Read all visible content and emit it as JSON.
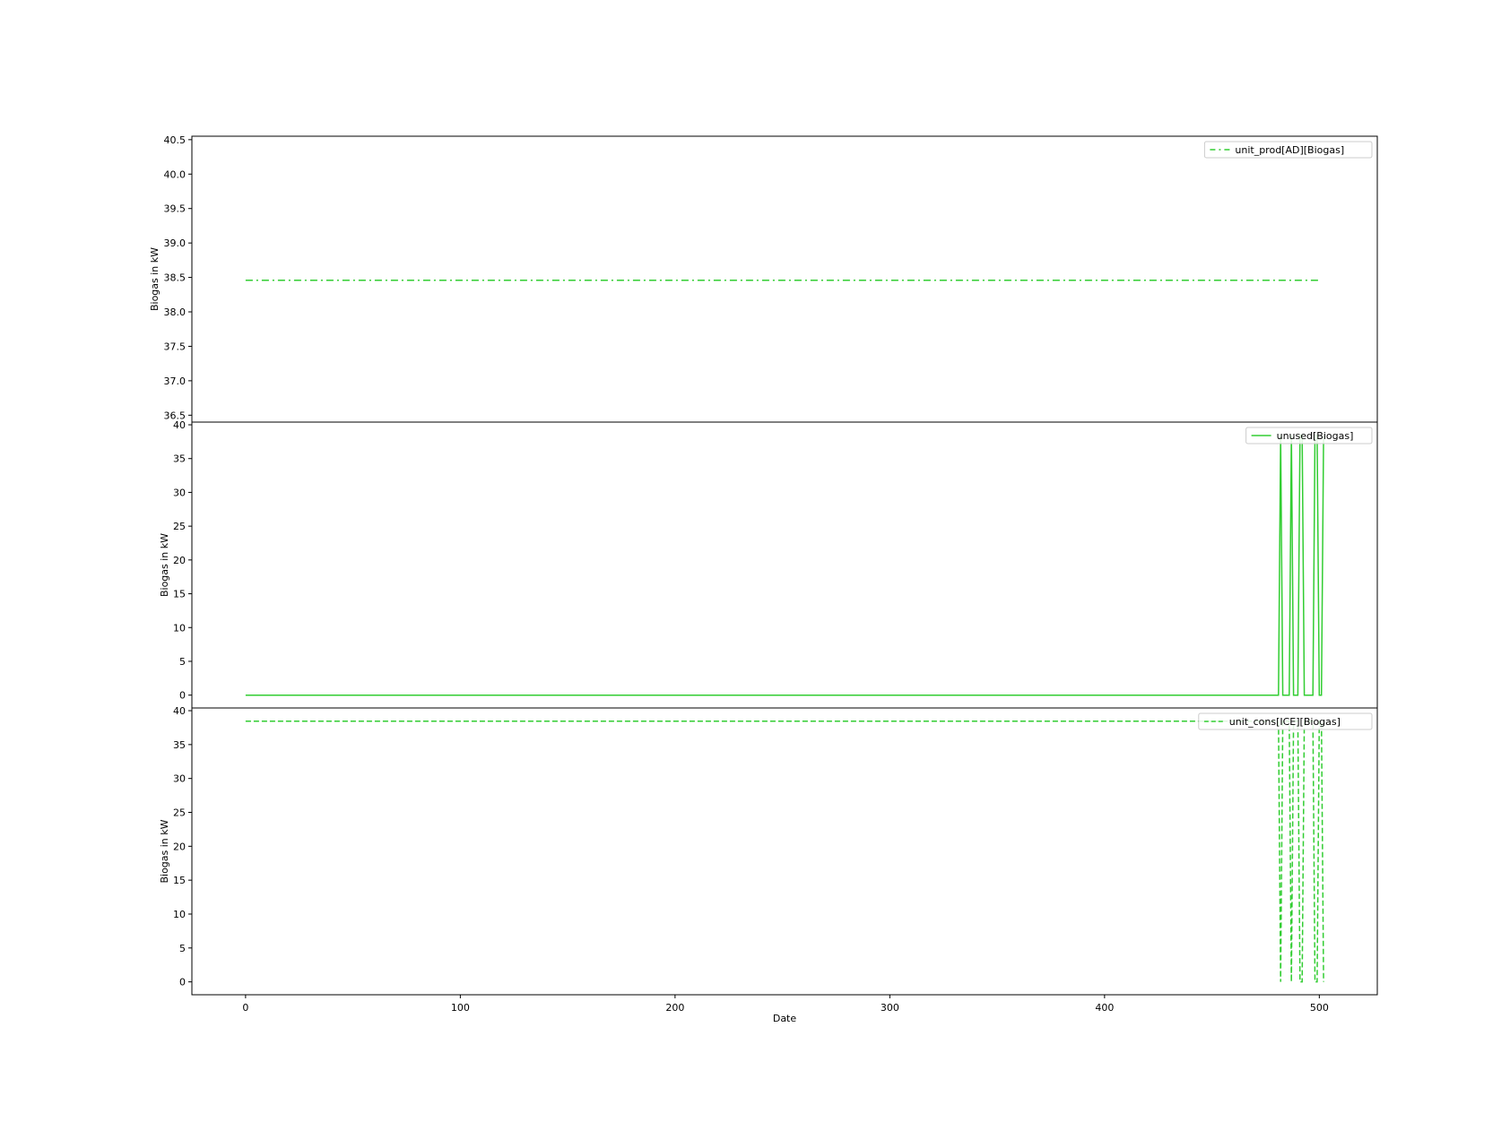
{
  "chart_data": {
    "type": "line",
    "xlabel": "Date",
    "x_ticks": [
      0,
      100,
      200,
      300,
      400,
      500
    ],
    "xlim": [
      -25,
      527
    ],
    "line_color": "#32cd32",
    "subplots": [
      {
        "ylabel": "Biogas in kW",
        "ylim": [
          36.4,
          40.55
        ],
        "y_ticks": [
          36.5,
          37.0,
          37.5,
          38.0,
          38.5,
          39.0,
          39.5,
          40.0,
          40.5
        ],
        "y_tick_labels": [
          "36.5",
          "37.0",
          "37.5",
          "38.0",
          "38.5",
          "39.0",
          "39.5",
          "40.0",
          "40.5"
        ],
        "legend_position": "top-right",
        "series": [
          {
            "name": "unit_prod[AD][Biogas]",
            "line_style": "dashdot",
            "points": [
              [
                0,
                38.46
              ],
              [
                500,
                38.46
              ]
            ]
          }
        ]
      },
      {
        "ylabel": "Biogas in kW",
        "ylim": [
          -1.9,
          40.4
        ],
        "y_ticks": [
          0,
          5,
          10,
          15,
          20,
          25,
          30,
          35,
          40
        ],
        "y_tick_labels": [
          "0",
          "5",
          "10",
          "15",
          "20",
          "25",
          "30",
          "35",
          "40"
        ],
        "legend_position": "top-right",
        "series": [
          {
            "name": "unused[Biogas]",
            "line_style": "solid",
            "points": [
              [
                0,
                0
              ],
              [
                481,
                0
              ],
              [
                482,
                38.46
              ],
              [
                483,
                0
              ],
              [
                486,
                0
              ],
              [
                487,
                38.46
              ],
              [
                488,
                0
              ],
              [
                490,
                0
              ],
              [
                491,
                38.46
              ],
              [
                492,
                38.46
              ],
              [
                493,
                0
              ],
              [
                497,
                0
              ],
              [
                498,
                38.46
              ],
              [
                499,
                38.46
              ],
              [
                500,
                0
              ],
              [
                501,
                0
              ],
              [
                502,
                38.46
              ]
            ]
          }
        ]
      },
      {
        "ylabel": "Biogas in kW",
        "ylim": [
          -1.9,
          40.4
        ],
        "y_ticks": [
          0,
          5,
          10,
          15,
          20,
          25,
          30,
          35,
          40
        ],
        "y_tick_labels": [
          "0",
          "5",
          "10",
          "15",
          "20",
          "25",
          "30",
          "35",
          "40"
        ],
        "legend_position": "top-right",
        "series": [
          {
            "name": "unit_cons[ICE][Biogas]",
            "line_style": "dashed",
            "points": [
              [
                0,
                38.46
              ],
              [
                481,
                38.46
              ],
              [
                482,
                0
              ],
              [
                483,
                38.46
              ],
              [
                486,
                38.46
              ],
              [
                487,
                0
              ],
              [
                488,
                38.46
              ],
              [
                490,
                38.46
              ],
              [
                491,
                0
              ],
              [
                492,
                0
              ],
              [
                493,
                38.46
              ],
              [
                497,
                38.46
              ],
              [
                498,
                0
              ],
              [
                499,
                0
              ],
              [
                500,
                38.46
              ],
              [
                501,
                38.46
              ],
              [
                502,
                0
              ]
            ]
          }
        ]
      }
    ]
  }
}
